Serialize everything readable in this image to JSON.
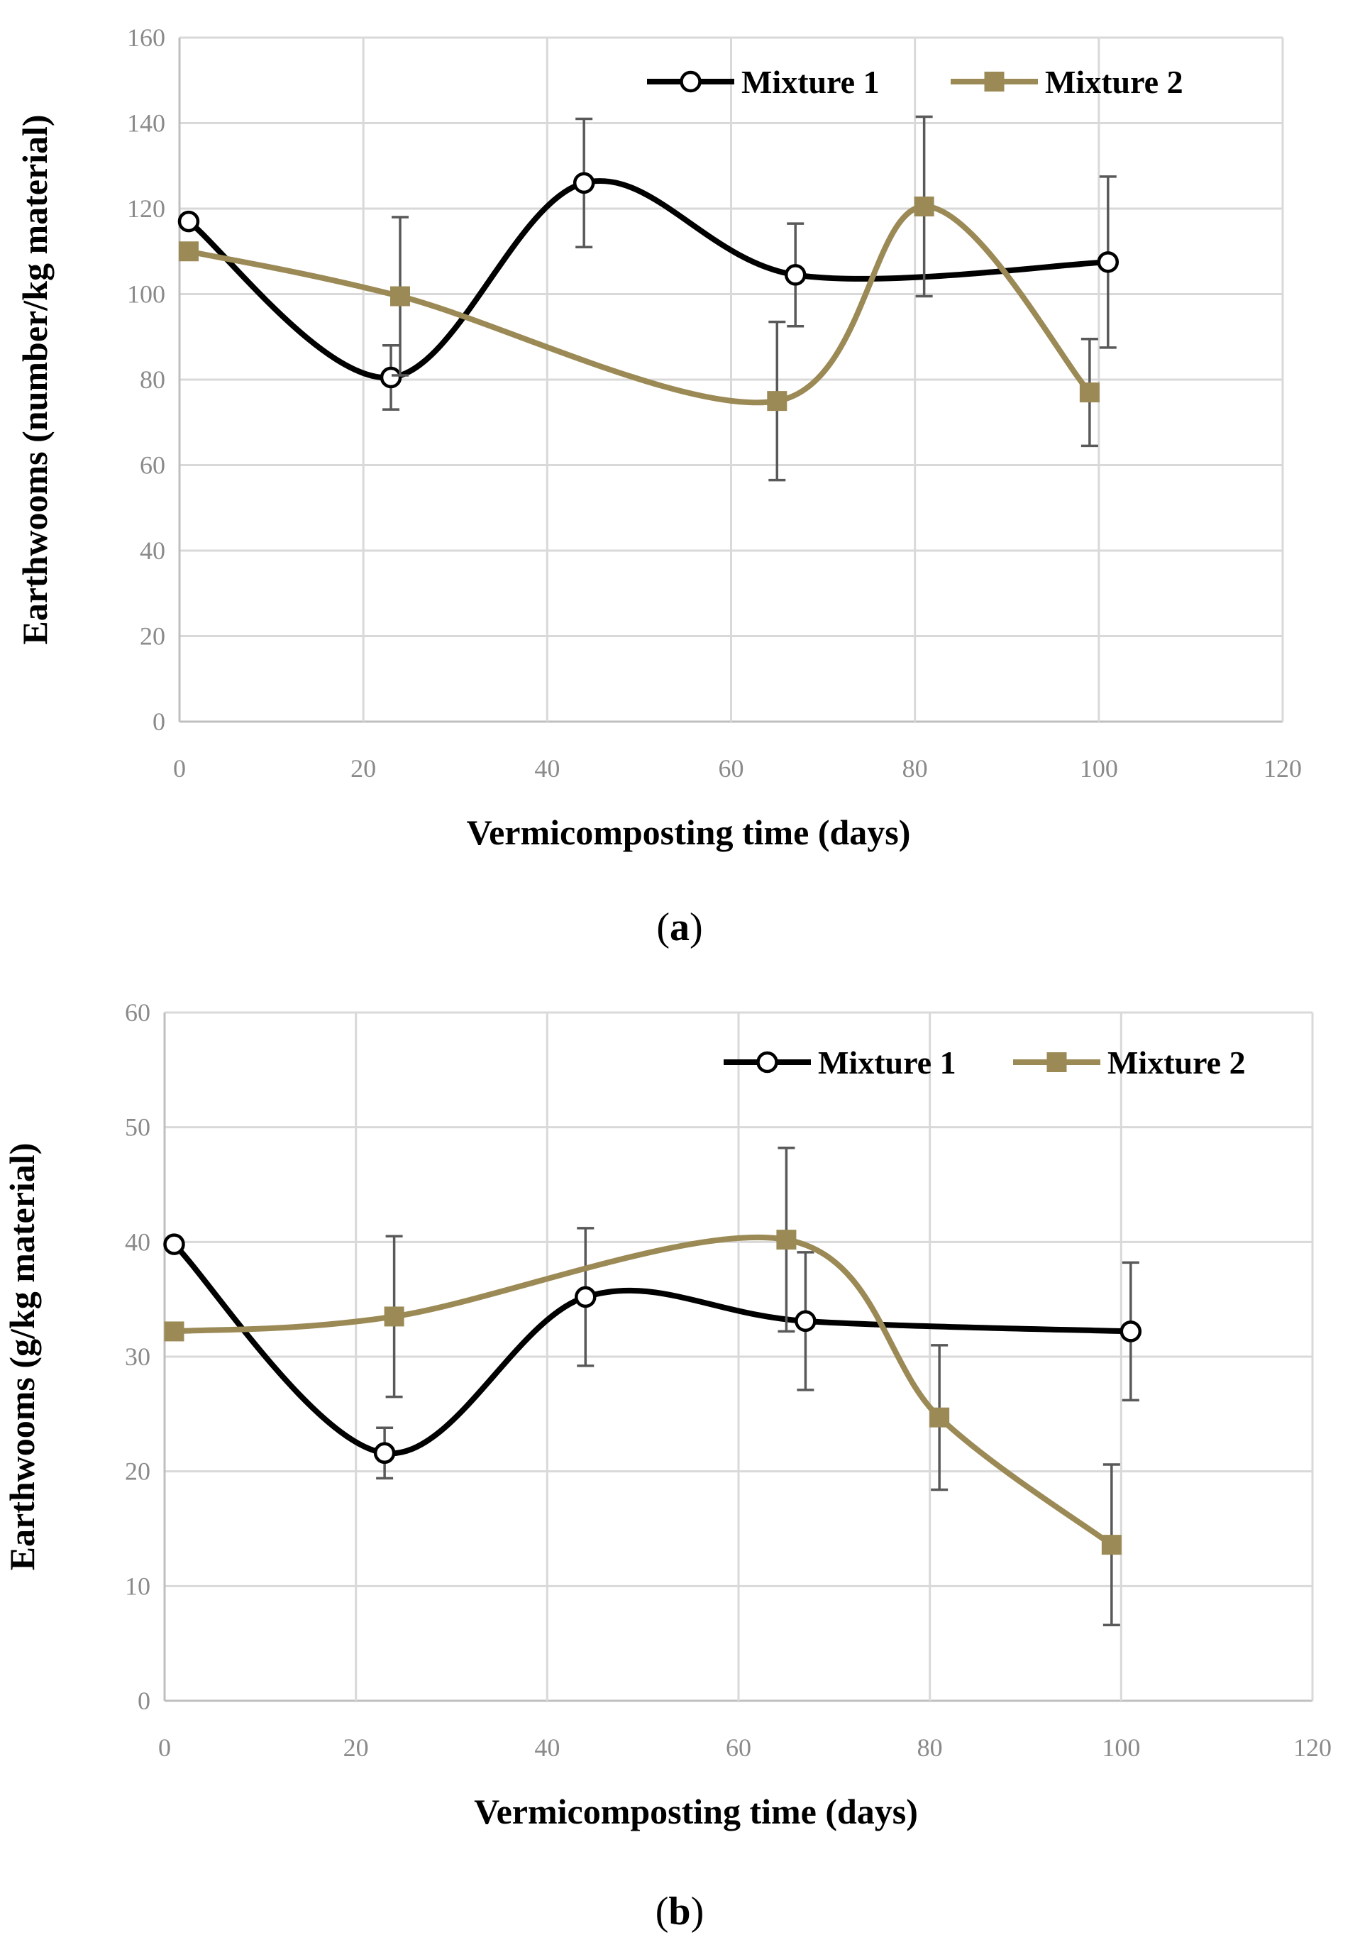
{
  "figure": {
    "colors": {
      "mixture1": "#000000",
      "mixture2": "#9b8a55",
      "errorbar": "#595959",
      "grid": "#d9d9d9"
    }
  },
  "chart_data": [
    {
      "type": "line",
      "panel_label": "a",
      "xlabel": "Vermicomposting time (days)",
      "ylabel": "Earthwooms (number/kg material)",
      "xlim": [
        0,
        120
      ],
      "ylim": [
        0,
        160
      ],
      "xticks": [
        0,
        20,
        40,
        60,
        80,
        100,
        120
      ],
      "yticks": [
        0,
        20,
        40,
        60,
        80,
        100,
        120,
        140,
        160
      ],
      "grid": true,
      "legend_position": "top-right",
      "series": [
        {
          "name": "Mixture 1",
          "marker": "circle",
          "x": [
            1,
            23,
            44,
            67,
            101
          ],
          "y": [
            117,
            80.5,
            126,
            104.5,
            107.5
          ],
          "err": [
            0,
            7.5,
            15,
            12,
            20
          ]
        },
        {
          "name": "Mixture 2",
          "marker": "square",
          "x": [
            1,
            24,
            65,
            81,
            99
          ],
          "y": [
            110,
            99.5,
            75,
            120.5,
            77
          ],
          "err": [
            0,
            18.5,
            18.5,
            21,
            12.5
          ]
        }
      ]
    },
    {
      "type": "line",
      "panel_label": "b",
      "xlabel": "Vermicomposting time (days)",
      "ylabel": "Earthwooms (g/kg material)",
      "xlim": [
        0,
        120
      ],
      "ylim": [
        0,
        60
      ],
      "xticks": [
        0,
        20,
        40,
        60,
        80,
        100,
        120
      ],
      "yticks": [
        0,
        10,
        20,
        30,
        40,
        50,
        60
      ],
      "grid": true,
      "legend_position": "top-right",
      "series": [
        {
          "name": "Mixture 1",
          "marker": "circle",
          "x": [
            1,
            23,
            44,
            67,
            101
          ],
          "y": [
            39.8,
            21.6,
            35.2,
            33.1,
            32.2
          ],
          "err": [
            0,
            2.2,
            6,
            6,
            6
          ]
        },
        {
          "name": "Mixture 2",
          "marker": "square",
          "x": [
            1,
            24,
            65,
            81,
            99
          ],
          "y": [
            32.2,
            33.5,
            40.2,
            24.7,
            13.6
          ],
          "err": [
            0,
            7,
            8,
            6.3,
            7
          ]
        }
      ]
    }
  ]
}
